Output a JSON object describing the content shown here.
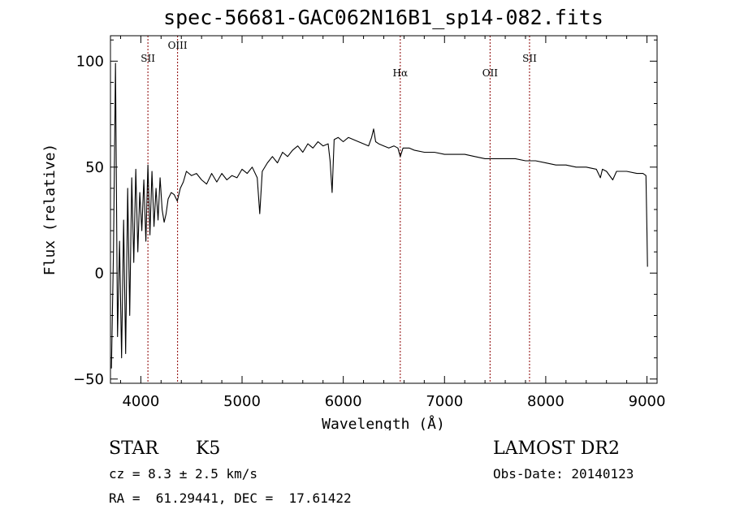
{
  "chart_data": {
    "type": "line",
    "title": "spec-56681-GAC062N16B1_sp14-082.fits",
    "xlabel": "Wavelength (Å)",
    "ylabel": "Flux (relative)",
    "xlim": [
      3700,
      9100
    ],
    "ylim": [
      -52,
      112
    ],
    "xticks": [
      4000,
      5000,
      6000,
      7000,
      8000,
      9000
    ],
    "yticks": [
      -50,
      0,
      50,
      100
    ],
    "grid": false,
    "line_color": "#000000",
    "marker_color": "#8b0000",
    "lines": [
      {
        "label": "SII",
        "x": 4070
      },
      {
        "label": "OIII",
        "x": 4363
      },
      {
        "label": "Hα",
        "x": 6563
      },
      {
        "label": "OII",
        "x": 7450
      },
      {
        "label": "SII",
        "x": 7840
      }
    ],
    "series": [
      {
        "x": [
          3710,
          3730,
          3750,
          3770,
          3790,
          3810,
          3830,
          3850,
          3870,
          3890,
          3910,
          3930,
          3950,
          3970,
          3990,
          4010,
          4030,
          4050,
          4070,
          4090,
          4110,
          4130,
          4150,
          4170,
          4190,
          4210,
          4230,
          4250,
          4270,
          4300,
          4330,
          4360,
          4390,
          4420,
          4450,
          4500,
          4550,
          4600,
          4650,
          4700,
          4750,
          4800,
          4850,
          4900,
          4950,
          5000,
          5050,
          5100,
          5150,
          5175,
          5200,
          5250,
          5300,
          5350,
          5400,
          5450,
          5500,
          5550,
          5600,
          5650,
          5700,
          5750,
          5800,
          5850,
          5870,
          5890,
          5910,
          5950,
          6000,
          6050,
          6100,
          6150,
          6200,
          6250,
          6280,
          6300,
          6320,
          6350,
          6400,
          6450,
          6500,
          6540,
          6563,
          6590,
          6650,
          6700,
          6800,
          6900,
          7000,
          7100,
          7200,
          7300,
          7400,
          7500,
          7600,
          7700,
          7800,
          7900,
          8000,
          8100,
          8200,
          8300,
          8400,
          8500,
          8540,
          8560,
          8600,
          8662,
          8700,
          8800,
          8900,
          8960,
          8990,
          9000,
          9005
        ],
        "values": [
          -45,
          10,
          99,
          -30,
          15,
          -40,
          25,
          -38,
          40,
          -20,
          45,
          5,
          49,
          10,
          38,
          20,
          44,
          15,
          51,
          18,
          48,
          22,
          40,
          25,
          45,
          30,
          24,
          28,
          35,
          38,
          37,
          34,
          40,
          43,
          48,
          46,
          47,
          44,
          42,
          47,
          43,
          47,
          44,
          46,
          45,
          49,
          47,
          50,
          45,
          28,
          48,
          52,
          55,
          52,
          57,
          55,
          58,
          60,
          57,
          61,
          59,
          62,
          60,
          61,
          53,
          38,
          63,
          64,
          62,
          64,
          63,
          62,
          61,
          60,
          64,
          68,
          62,
          61,
          60,
          59,
          60,
          59,
          55,
          59,
          59,
          58,
          57,
          57,
          56,
          56,
          56,
          55,
          54,
          54,
          54,
          54,
          53,
          53,
          52,
          51,
          51,
          50,
          50,
          49,
          45,
          49,
          48,
          44,
          48,
          48,
          47,
          47,
          46,
          20,
          3
        ]
      }
    ]
  },
  "info": {
    "object_class": "STAR",
    "subclass": "K5",
    "survey": "LAMOST DR2",
    "cz": "cz = 8.3 ± 2.5 km/s",
    "obs_date": "Obs-Date: 20140123",
    "coords": "RA =  61.29441, DEC =  17.61422"
  }
}
